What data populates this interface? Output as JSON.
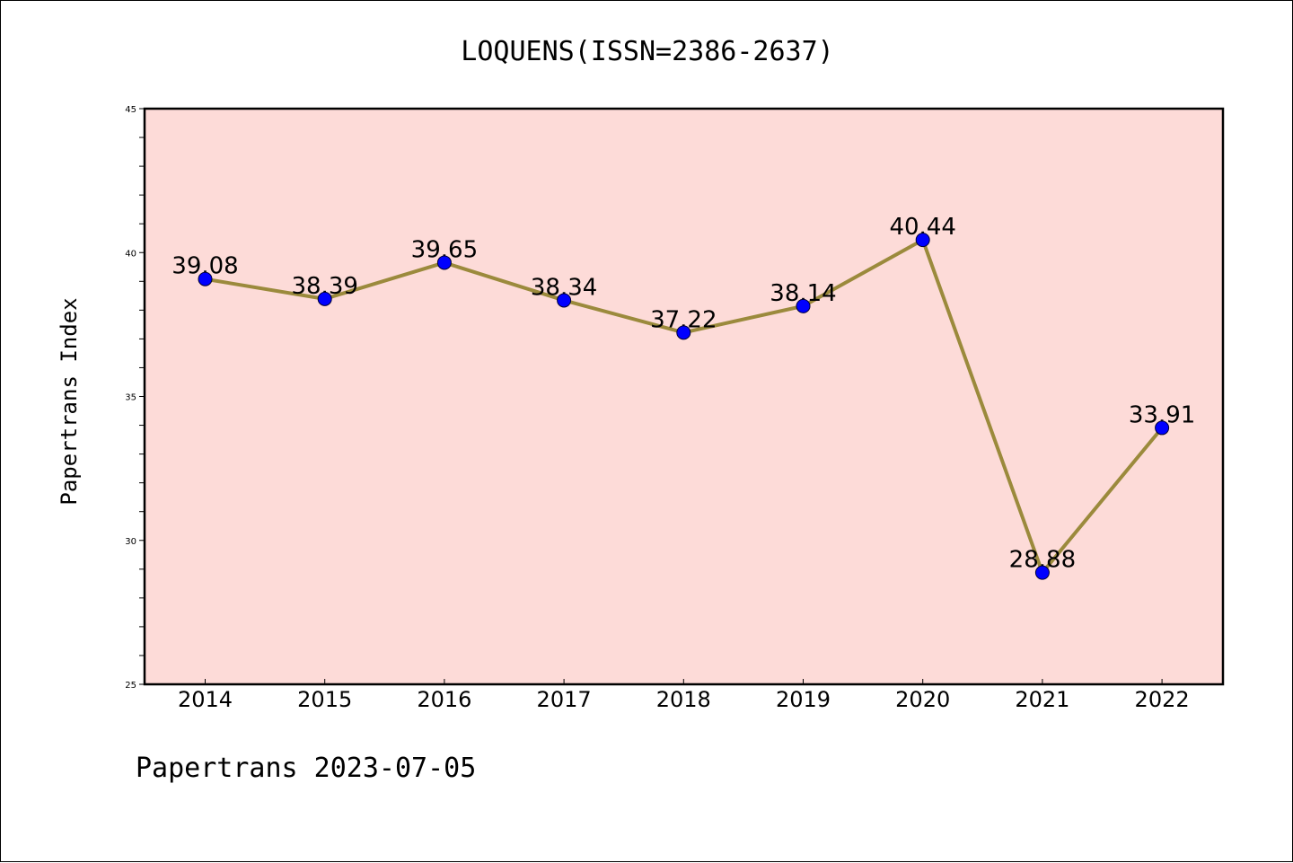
{
  "chart_data": {
    "type": "line",
    "title": "LOQUENS(ISSN=2386-2637)",
    "xlabel": "",
    "ylabel": "Papertrans Index",
    "categories": [
      "2014",
      "2015",
      "2016",
      "2017",
      "2018",
      "2019",
      "2020",
      "2021",
      "2022"
    ],
    "values": [
      39.08,
      38.39,
      39.65,
      38.34,
      37.22,
      38.14,
      40.44,
      28.88,
      33.91
    ],
    "data_labels": [
      "39.08",
      "38.39",
      "39.65",
      "38.34",
      "37.22",
      "38.14",
      "40.44",
      "28.88",
      "33.91"
    ],
    "ylim": [
      25,
      45
    ],
    "yticks": [
      25,
      30,
      35,
      40,
      45
    ],
    "grid": false,
    "legend": "none",
    "colors": {
      "background": "#fddbd8",
      "line": "#9b8a3c",
      "marker": "#0000ff"
    }
  },
  "footer": "Papertrans 2023-07-05"
}
